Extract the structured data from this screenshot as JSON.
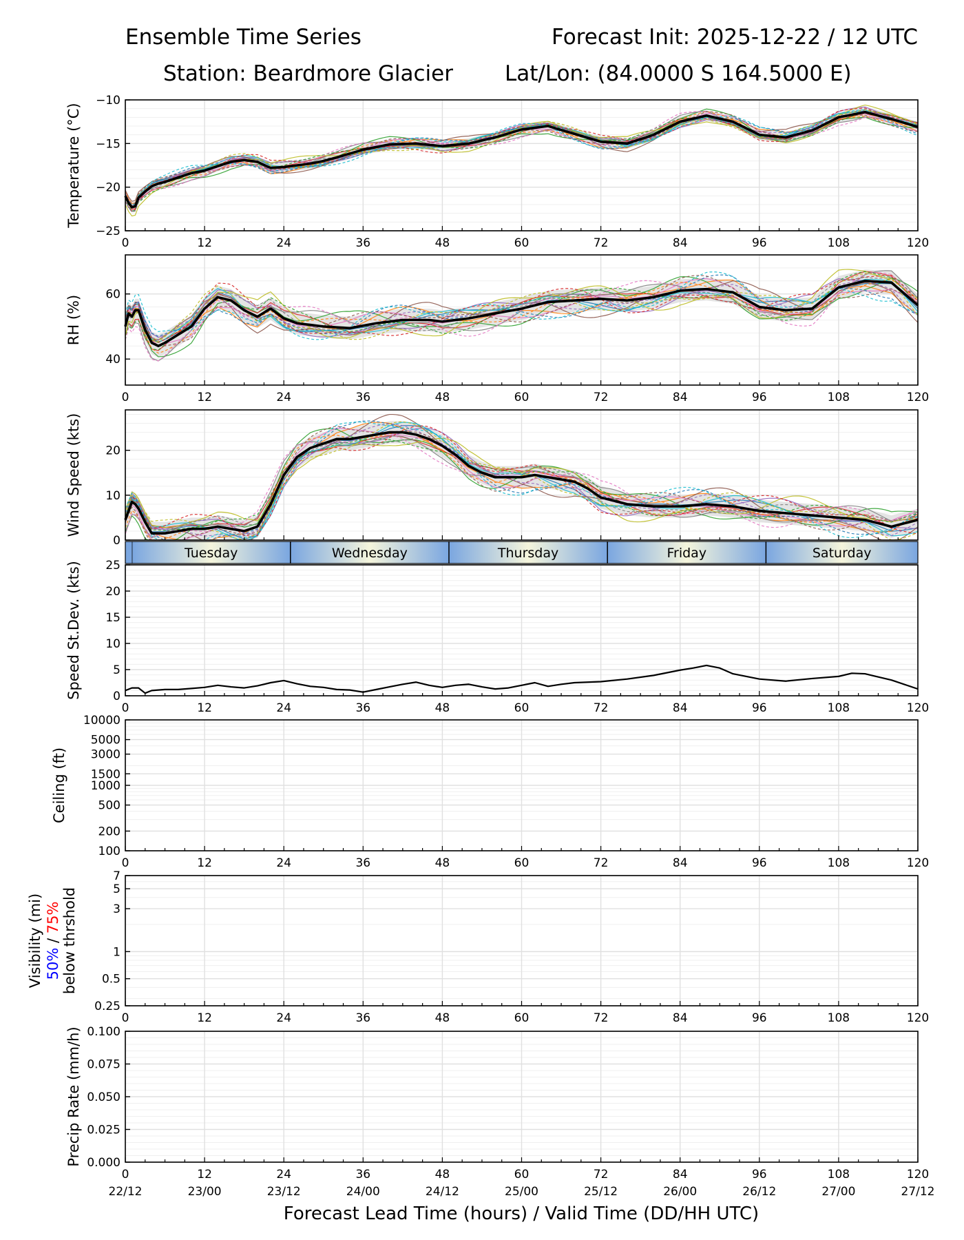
{
  "header": {
    "title": "Ensemble Time Series",
    "init": "Forecast Init: 2025-12-22 / 12 UTC",
    "station": "Station: Beardmore Glacier",
    "latlon": "Lat/Lon: (84.0000 S 164.5000 E)"
  },
  "xaxis": {
    "ticks": [
      0,
      12,
      24,
      36,
      48,
      60,
      72,
      84,
      96,
      108,
      120
    ],
    "valid_times": [
      "22/12",
      "23/00",
      "23/12",
      "24/00",
      "24/12",
      "25/00",
      "25/12",
      "26/00",
      "26/12",
      "27/00",
      "27/12"
    ],
    "label": "Forecast Lead Time (hours) / Valid Time (DD/HH UTC)",
    "range": [
      0,
      120
    ]
  },
  "days": [
    {
      "name": "Tuesday",
      "start": 1,
      "end": 25
    },
    {
      "name": "Wednesday",
      "start": 25,
      "end": 49
    },
    {
      "name": "Thursday",
      "start": 49,
      "end": 73
    },
    {
      "name": "Friday",
      "start": 73,
      "end": 97
    },
    {
      "name": "Saturday",
      "start": 97,
      "end": 120
    }
  ],
  "colors": {
    "mean": "#000000",
    "spread": "#d9d9d9",
    "grid": "#e0e0e0",
    "vis_50": "#0000ff",
    "vis_75": "#ff0000",
    "day_edge": "#7aa6e0",
    "day_center": "#f5f5dc"
  },
  "chart_data": [
    {
      "id": "temperature",
      "type": "line",
      "ylabel": "Temperature (°C)",
      "ylim": [
        -25,
        -10
      ],
      "yticks": [
        -25,
        -20,
        -15,
        -10
      ],
      "yticklabels": [
        "−25",
        "−20",
        "−15",
        "−10"
      ],
      "x": [
        0,
        0.5,
        1,
        1.5,
        2,
        3,
        4,
        5,
        6,
        8,
        10,
        12,
        14,
        16,
        18,
        20,
        22,
        24,
        26,
        28,
        30,
        32,
        36,
        40,
        44,
        48,
        52,
        56,
        60,
        64,
        68,
        72,
        76,
        80,
        84,
        88,
        92,
        96,
        100,
        104,
        108,
        112,
        116,
        120
      ],
      "mean": [
        -21.0,
        -21.8,
        -22.3,
        -22.2,
        -21.2,
        -20.5,
        -19.9,
        -19.6,
        -19.4,
        -18.9,
        -18.4,
        -18.1,
        -17.6,
        -17.1,
        -16.9,
        -17.1,
        -17.8,
        -17.7,
        -17.5,
        -17.3,
        -17.0,
        -16.6,
        -15.7,
        -15.1,
        -15.0,
        -15.3,
        -15.0,
        -14.3,
        -13.4,
        -13.0,
        -13.9,
        -14.8,
        -15.0,
        -14.0,
        -12.5,
        -11.8,
        -12.5,
        -14.0,
        -14.3,
        -13.5,
        -12.0,
        -11.4,
        -12.2,
        -13.1
      ],
      "spread": 0.6,
      "members": 20
    },
    {
      "id": "rh",
      "type": "line",
      "ylabel": "RH (%)",
      "ylim": [
        32,
        72
      ],
      "yticks": [
        40,
        60
      ],
      "yticklabels": [
        "40",
        "60"
      ],
      "x": [
        0,
        0.5,
        1,
        1.5,
        2,
        3,
        4,
        5,
        6,
        8,
        10,
        12,
        14,
        16,
        18,
        20,
        22,
        24,
        26,
        30,
        34,
        38,
        42,
        46,
        48,
        52,
        56,
        60,
        64,
        68,
        72,
        76,
        80,
        84,
        88,
        92,
        96,
        100,
        104,
        108,
        112,
        116,
        120
      ],
      "mean": [
        50.0,
        54.0,
        53.0,
        55.0,
        55.0,
        49.0,
        45.0,
        44.0,
        45.0,
        47.5,
        50.0,
        55.5,
        59.0,
        58.0,
        55.0,
        53.0,
        55.5,
        52.5,
        51.0,
        50.0,
        49.5,
        51.0,
        52.0,
        52.0,
        51.5,
        52.5,
        54.0,
        55.5,
        57.5,
        58.0,
        58.5,
        58.0,
        59.0,
        61.0,
        61.5,
        60.5,
        56.0,
        55.0,
        55.5,
        62.0,
        64.0,
        63.5,
        56.5
      ],
      "spread": 3.5,
      "members": 20
    },
    {
      "id": "wind",
      "type": "line",
      "ylabel": "Wind Speed (kts)",
      "ylim": [
        0,
        29
      ],
      "yticks": [
        0,
        10,
        20
      ],
      "yticklabels": [
        "0",
        "10",
        "20"
      ],
      "x": [
        0,
        0.5,
        1,
        1.5,
        2,
        3,
        4,
        5,
        6,
        8,
        10,
        12,
        14,
        16,
        18,
        20,
        22,
        24,
        26,
        28,
        30,
        32,
        34,
        36,
        38,
        40,
        42,
        44,
        46,
        48,
        50,
        52,
        54,
        56,
        58,
        60,
        62,
        64,
        66,
        68,
        70,
        72,
        76,
        80,
        84,
        88,
        92,
        96,
        100,
        104,
        108,
        112,
        116,
        120
      ],
      "mean": [
        4.5,
        6.5,
        8.5,
        8.0,
        7.0,
        4.0,
        1.5,
        1.5,
        1.5,
        2.0,
        2.5,
        2.5,
        3.0,
        2.5,
        2.0,
        3.0,
        8.0,
        14.5,
        18.5,
        20.5,
        21.5,
        22.5,
        22.5,
        23.0,
        23.5,
        24.0,
        24.0,
        23.5,
        22.5,
        21.0,
        19.0,
        16.5,
        15.0,
        14.0,
        14.0,
        14.0,
        14.5,
        14.0,
        13.5,
        13.0,
        11.5,
        9.5,
        8.0,
        7.5,
        7.5,
        8.0,
        7.5,
        6.5,
        6.0,
        5.5,
        5.0,
        4.5,
        3.0,
        4.5
      ],
      "spread": 2.5,
      "members": 20
    },
    {
      "id": "speed_stdev",
      "type": "line",
      "ylabel": "Speed St.Dev. (kts)",
      "ylim": [
        0,
        25
      ],
      "yticks": [
        0,
        5,
        10,
        15,
        20,
        25
      ],
      "yticklabels": [
        "0",
        "5",
        "10",
        "15",
        "20",
        "25"
      ],
      "x": [
        0,
        1,
        2,
        3,
        4,
        6,
        8,
        10,
        12,
        14,
        16,
        18,
        20,
        22,
        24,
        26,
        28,
        30,
        32,
        34,
        36,
        38,
        40,
        42,
        44,
        46,
        48,
        50,
        52,
        54,
        56,
        58,
        60,
        62,
        64,
        66,
        68,
        72,
        76,
        80,
        84,
        86,
        88,
        90,
        92,
        96,
        100,
        104,
        108,
        110,
        112,
        116,
        120
      ],
      "values": [
        1.0,
        1.5,
        1.5,
        0.5,
        1.0,
        1.2,
        1.2,
        1.4,
        1.6,
        2.0,
        1.7,
        1.5,
        1.9,
        2.5,
        2.9,
        2.3,
        1.8,
        1.6,
        1.2,
        1.1,
        0.7,
        1.2,
        1.7,
        2.2,
        2.6,
        2.0,
        1.6,
        2.0,
        2.2,
        1.7,
        1.3,
        1.5,
        2.0,
        2.5,
        1.8,
        2.2,
        2.5,
        2.7,
        3.2,
        3.9,
        4.9,
        5.3,
        5.8,
        5.3,
        4.2,
        3.2,
        2.8,
        3.3,
        3.7,
        4.3,
        4.2,
        3.0,
        1.3
      ]
    },
    {
      "id": "ceiling",
      "type": "line",
      "ylabel": "Ceiling (ft)",
      "scale": "log",
      "ylim": [
        100,
        10000
      ],
      "yticks": [
        100,
        200,
        500,
        1000,
        1500,
        3000,
        5000,
        10000
      ],
      "yticklabels": [
        "100",
        "200",
        "500",
        "1000",
        "1500",
        "3000",
        "5000",
        "10000"
      ],
      "series": []
    },
    {
      "id": "visibility",
      "type": "line",
      "ylabel": "Visibility (mi)",
      "ylabel_pct50": "50%",
      "ylabel_sep": "/",
      "ylabel_pct75": "75%",
      "ylabel_line3": "below thrshold",
      "scale": "log",
      "ylim": [
        0.25,
        7
      ],
      "yticks": [
        0.25,
        0.5,
        1,
        3,
        5,
        7
      ],
      "yticklabels": [
        "0.25",
        "0.5",
        "1",
        "3",
        "5",
        "7"
      ],
      "series": []
    },
    {
      "id": "precip",
      "type": "line",
      "ylabel": "Precip Rate (mm/h)",
      "ylim": [
        0,
        0.1
      ],
      "yticks": [
        0,
        0.025,
        0.05,
        0.075,
        0.1
      ],
      "yticklabels": [
        "0.000",
        "0.025",
        "0.050",
        "0.075",
        "0.100"
      ],
      "series": []
    }
  ]
}
